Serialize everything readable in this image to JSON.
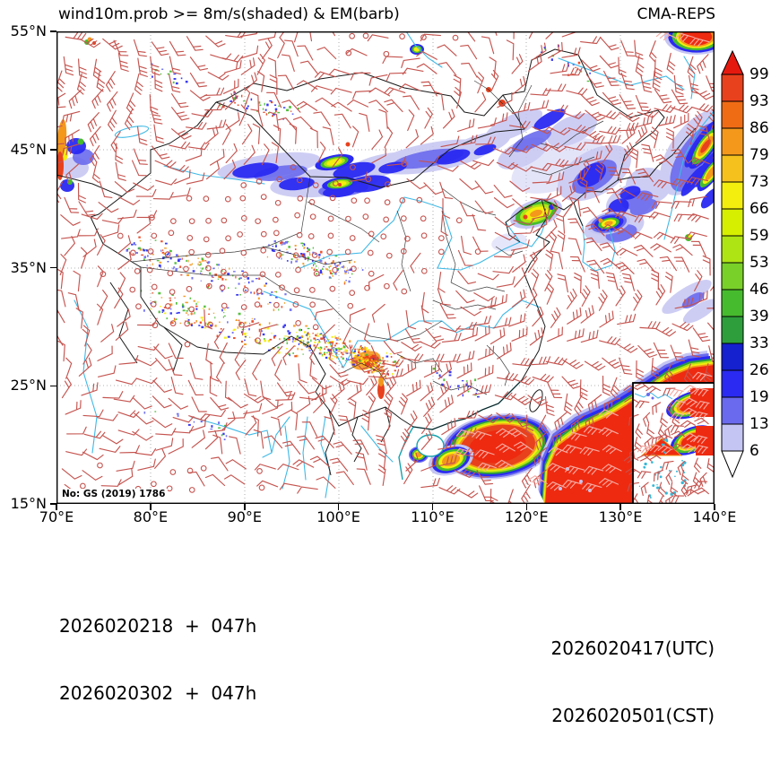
{
  "title": {
    "left": "wind10m.prob >= 8m/s(shaded) & EM(barb)",
    "right": "CMA-REPS"
  },
  "axis": {
    "x_ticks": [
      "70°E",
      "80°E",
      "90°E",
      "100°E",
      "110°E",
      "120°E",
      "130°E",
      "140°E"
    ],
    "y_ticks": [
      "55°N",
      "45°N",
      "35°N",
      "25°N",
      "15°N"
    ]
  },
  "colorbar": {
    "labels": [
      "99",
      "93",
      "86",
      "79",
      "73",
      "66",
      "59",
      "53",
      "46",
      "39",
      "33",
      "26",
      "19",
      "13",
      "6"
    ],
    "segment_colors": [
      "#e8411d",
      "#ef6c15",
      "#f4981c",
      "#f4c11d",
      "#f4ee0e",
      "#d6ee00",
      "#afe414",
      "#78d029",
      "#47bb2e",
      "#2e9e3c",
      "#1520cf",
      "#2a2af2",
      "#6a6aee",
      "#c5c5f3"
    ],
    "arrow_top_color": "#e6190f",
    "arrow_bottom_color": "#ffffff"
  },
  "map_label": "No: GS (2019) 1786",
  "footer": {
    "init_utc": "2026020218  +  047h",
    "init_cst": "2026020302  +  047h",
    "valid_utc": "2026020417(UTC)",
    "valid_cst": "2026020501(CST)"
  },
  "chart_data": {
    "type": "heatmap",
    "subtype": "probability-map-with-wind-barbs",
    "title": "wind10m.prob >= 8m/s(shaded) & EM(barb)",
    "model": "CMA-REPS",
    "variable_shaded": "Probability of 10 m wind speed >= 8 m/s (%)",
    "variable_barb": "Ensemble mean 10 m wind (barbs)",
    "lon_range": [
      70,
      140
    ],
    "lat_range": [
      15,
      55
    ],
    "lon_ticks": [
      70,
      80,
      90,
      100,
      110,
      120,
      130,
      140
    ],
    "lat_ticks": [
      15,
      25,
      35,
      45,
      55
    ],
    "grid": "dotted, every 10 degrees",
    "prob_levels": [
      6,
      13,
      19,
      26,
      33,
      39,
      46,
      53,
      59,
      66,
      73,
      79,
      86,
      93,
      99
    ],
    "prob_colors_ascending": [
      "#c5c5f3",
      "#6a6aee",
      "#2a2af2",
      "#1520cf",
      "#2e9e3c",
      "#47bb2e",
      "#78d029",
      "#afe414",
      "#d6ee00",
      "#f4ee0e",
      "#f4c11d",
      "#f4981c",
      "#ef6c15",
      "#e8411d",
      "#e6190f"
    ],
    "legend_position": "right colorbar with over/under arrows",
    "init_time_utc": "2026020218",
    "init_time_cst": "2026020302",
    "lead_hours": "047",
    "valid_time_utc": "2026020417",
    "valid_time_cst": "2026020501",
    "license_note": "No: GS (2019) 1786",
    "high_prob_regions": [
      {
        "area": "South China Sea west blob",
        "center_lon": 117,
        "center_lat": 19.5,
        "max_prob": ">99"
      },
      {
        "area": "Philippine Sea / SE corner band",
        "center_lon": 132,
        "center_lat": 16,
        "max_prob": ">99"
      },
      {
        "area": "Sea of Japan coastal band",
        "center_lon": 138,
        "center_lat": 42,
        "max_prob": "~86"
      },
      {
        "area": "N Xinjiang - Mongolia band",
        "center_lon": 96,
        "center_lat": 44,
        "max_prob": "~73"
      },
      {
        "area": "Bohai / Liaodong Bay",
        "center_lon": 120,
        "center_lat": 39.5,
        "max_prob": "~73"
      },
      {
        "area": "NE corner (Okhotsk)",
        "center_lon": 138,
        "center_lat": 54.5,
        "max_prob": ">99"
      },
      {
        "area": "Tibetan Plateau scattered speckles",
        "center_lon": 88,
        "center_lat": 30,
        "max_prob": "isolated ~99"
      },
      {
        "area": "Korea Bay",
        "center_lon": 125,
        "center_lat": 38.8,
        "max_prob": "~66"
      }
    ]
  }
}
